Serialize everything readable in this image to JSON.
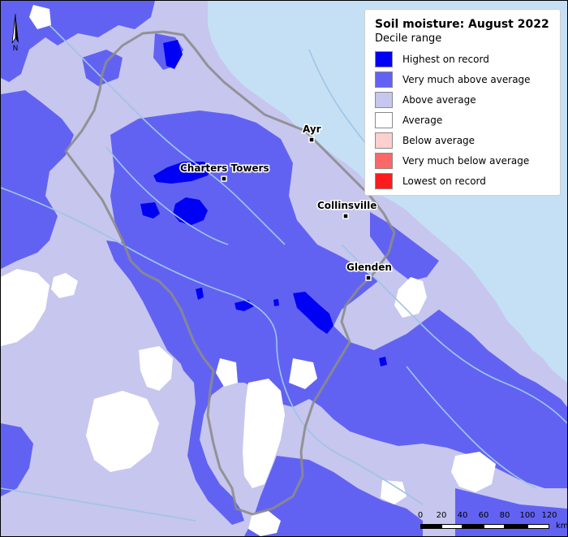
{
  "legend": {
    "title": "Soil moisture: August 2022",
    "subtitle": "Decile range",
    "items": [
      {
        "label": "Highest on record",
        "color": "#0000f5"
      },
      {
        "label": "Very much above average",
        "color": "#6262f2"
      },
      {
        "label": "Above average",
        "color": "#c6c6ef"
      },
      {
        "label": "Average",
        "color": "#ffffff"
      },
      {
        "label": "Below average",
        "color": "#fdcfcf"
      },
      {
        "label": "Very much below average",
        "color": "#fb6868"
      },
      {
        "label": "Lowest on record",
        "color": "#fb1d1d"
      }
    ]
  },
  "towns": [
    {
      "name": "Ayr"
    },
    {
      "name": "Charters Towers"
    },
    {
      "name": "Collinsville"
    },
    {
      "name": "Glenden"
    }
  ],
  "north_arrow": {
    "letter": "N"
  },
  "scale_bar": {
    "ticks": [
      "0",
      "20",
      "40",
      "60",
      "80",
      "100",
      "120"
    ],
    "unit": "km"
  },
  "colors": {
    "ocean": "#c5e0f5",
    "boundary": "#8c8c8c",
    "rivers": "#9ec4e6"
  }
}
